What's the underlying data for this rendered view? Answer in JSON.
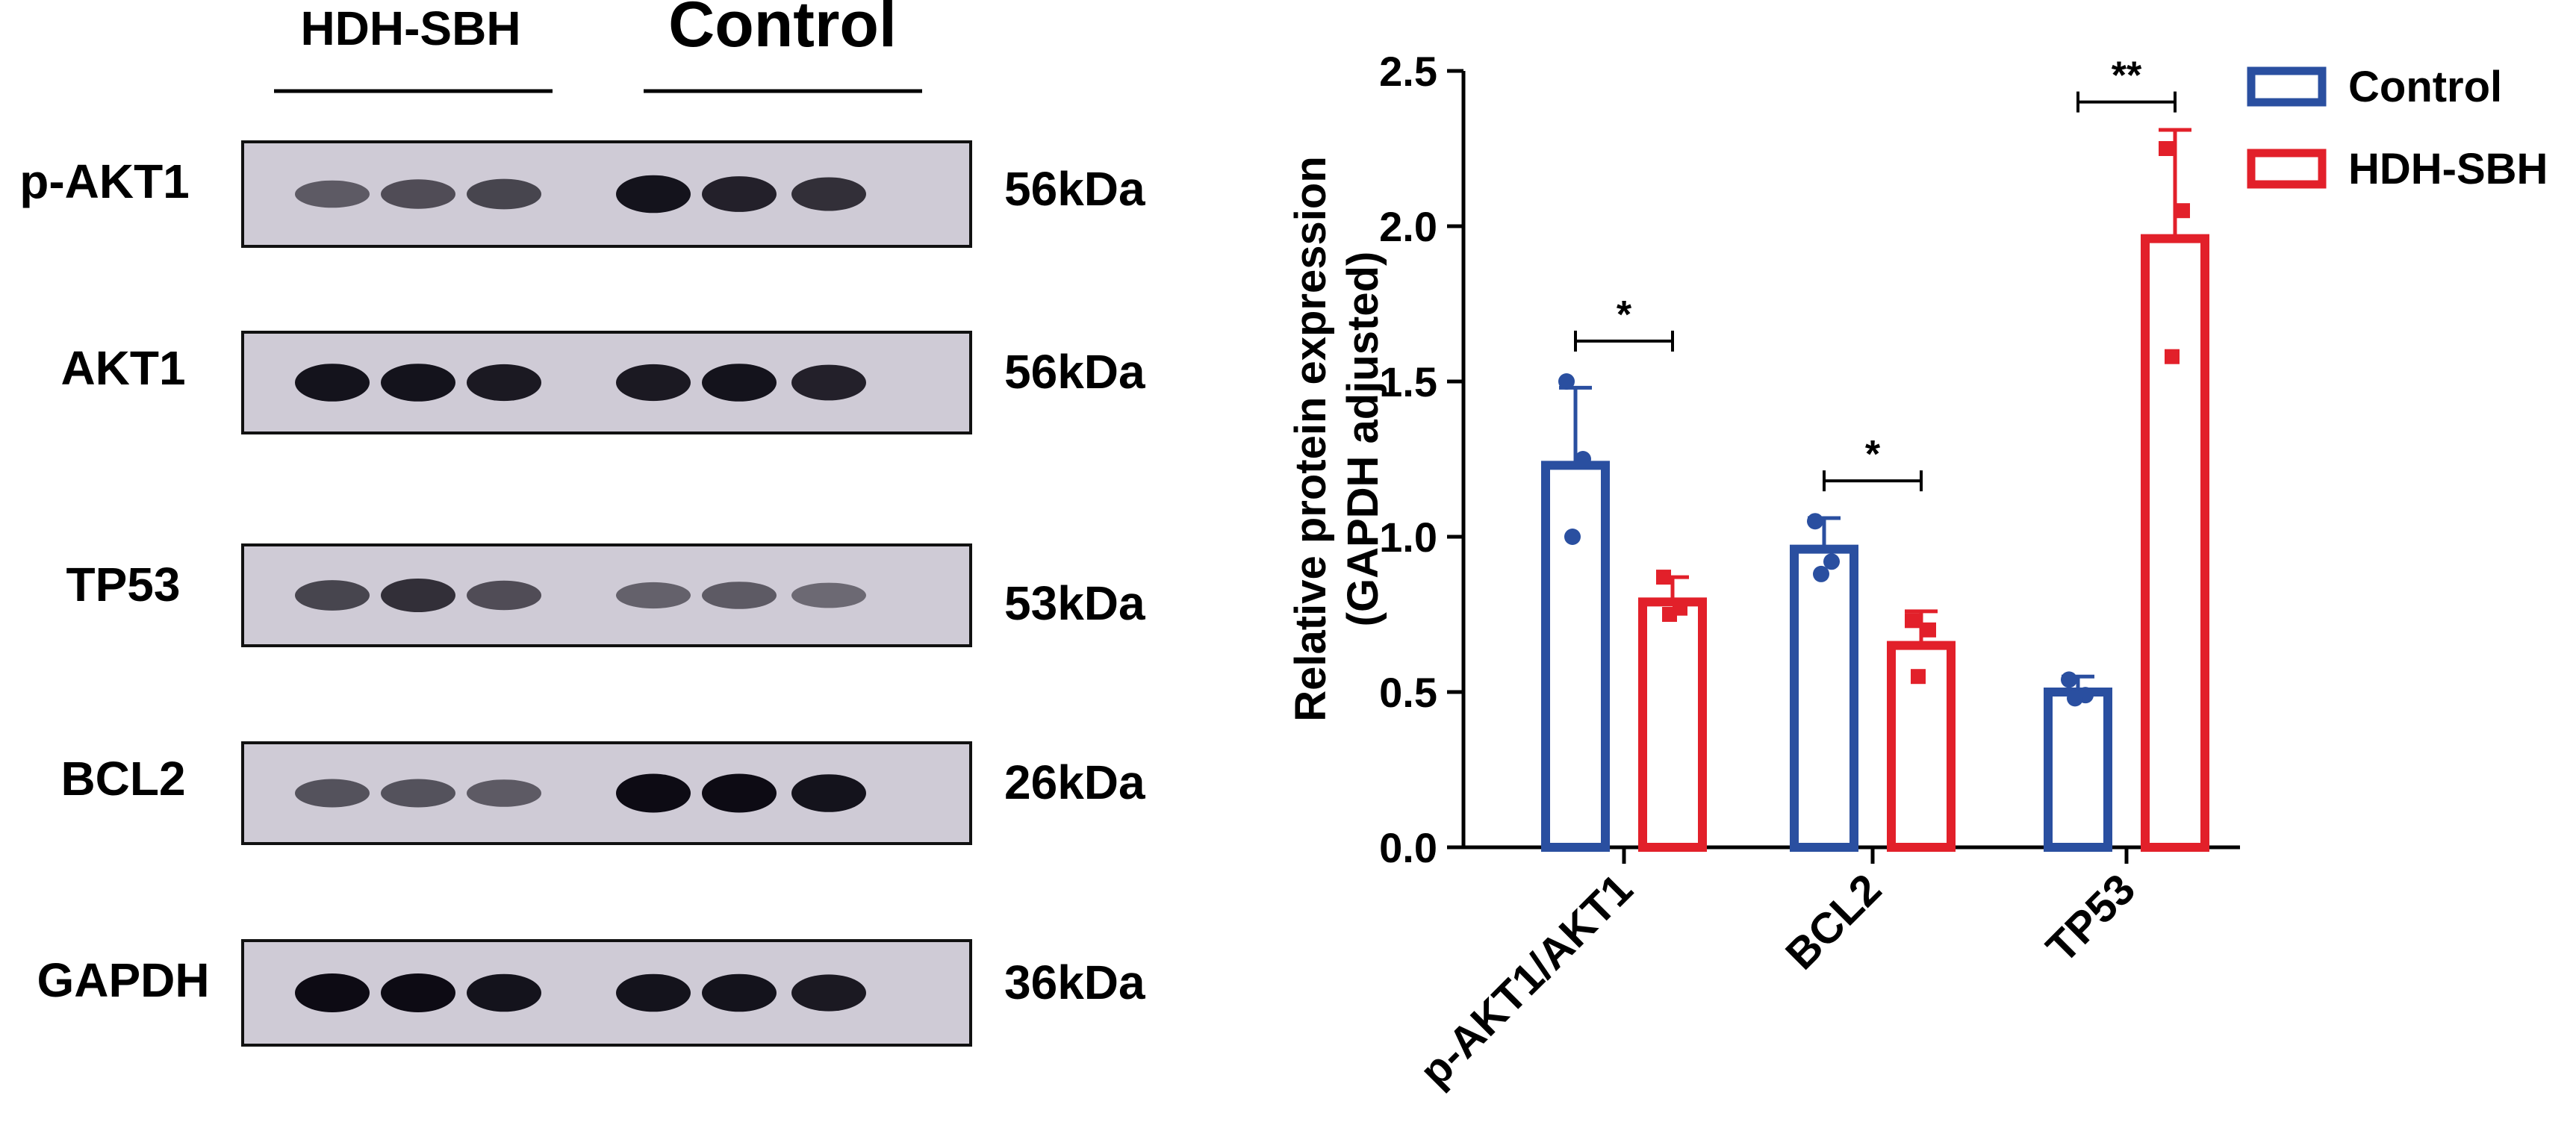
{
  "blot": {
    "group_labels": [
      "HDH-SBH",
      "Control"
    ],
    "rows": [
      {
        "protein": "p-AKT1",
        "size": "56kDa",
        "intensity": [
          0.45,
          0.55,
          0.6,
          0.95,
          0.85,
          0.75
        ]
      },
      {
        "protein": "AKT1",
        "size": "56kDa",
        "intensity": [
          0.95,
          0.95,
          0.9,
          0.9,
          0.95,
          0.85
        ]
      },
      {
        "protein": "TP53",
        "size": "53kDa",
        "intensity": [
          0.6,
          0.75,
          0.55,
          0.4,
          0.45,
          0.35
        ]
      },
      {
        "protein": "BCL2",
        "size": "26kDa",
        "intensity": [
          0.5,
          0.5,
          0.45,
          1.0,
          1.0,
          0.95
        ]
      },
      {
        "protein": "GAPDH",
        "size": "36kDa",
        "intensity": [
          1.0,
          1.0,
          0.95,
          0.95,
          0.95,
          0.9
        ]
      }
    ]
  },
  "chart_data": {
    "type": "bar",
    "ylabel_lines": [
      "Relative protein expression",
      "(GAPDH adjusted)"
    ],
    "categories": [
      "p-AKT1/AKT1",
      "BCL2",
      "TP53"
    ],
    "ylim": [
      0,
      2.5
    ],
    "yticks": [
      "0.0",
      "0.5",
      "1.0",
      "1.5",
      "2.0",
      "2.5"
    ],
    "series": [
      {
        "name": "Control",
        "color": "#2A4FA0",
        "values": [
          1.23,
          0.96,
          0.5
        ],
        "errors": [
          0.25,
          0.1,
          0.05
        ],
        "points": [
          [
            1.5,
            1.25,
            1.0
          ],
          [
            1.05,
            0.92,
            0.88
          ],
          [
            0.54,
            0.49,
            0.48
          ]
        ]
      },
      {
        "name": "HDH-SBH",
        "color": "#E2202A",
        "values": [
          0.79,
          0.65,
          1.96
        ],
        "errors": [
          0.08,
          0.11,
          0.35
        ],
        "points": [
          [
            0.87,
            0.77,
            0.75
          ],
          [
            0.73,
            0.7,
            0.55
          ],
          [
            2.25,
            2.05,
            1.58
          ]
        ]
      }
    ],
    "significance": [
      "*",
      "*",
      "**"
    ],
    "legend_position": "top-right",
    "grid": false
  }
}
